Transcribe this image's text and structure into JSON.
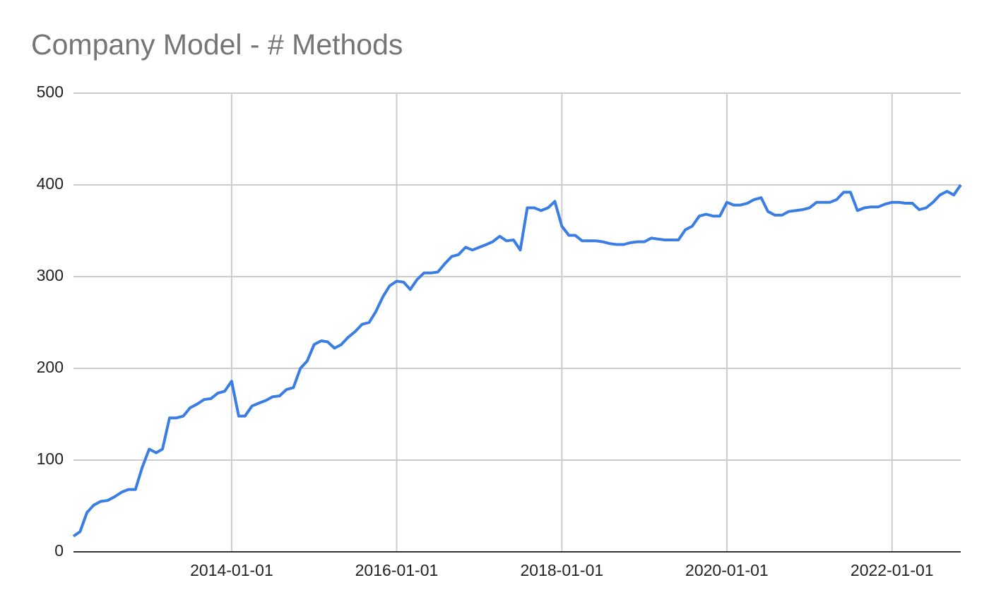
{
  "chart_data": {
    "type": "line",
    "title": "Company Model - # Methods",
    "x": [
      "2012-02-01",
      "2012-03-01",
      "2012-04-01",
      "2012-05-01",
      "2012-06-01",
      "2012-07-01",
      "2012-08-01",
      "2012-09-01",
      "2012-10-01",
      "2012-11-01",
      "2012-12-01",
      "2013-01-01",
      "2013-02-01",
      "2013-03-01",
      "2013-04-01",
      "2013-05-01",
      "2013-06-01",
      "2013-07-01",
      "2013-08-01",
      "2013-09-01",
      "2013-10-01",
      "2013-11-01",
      "2013-12-01",
      "2014-01-01",
      "2014-02-01",
      "2014-03-01",
      "2014-04-01",
      "2014-05-01",
      "2014-06-01",
      "2014-07-01",
      "2014-08-01",
      "2014-09-01",
      "2014-10-01",
      "2014-11-01",
      "2014-12-01",
      "2015-01-01",
      "2015-02-01",
      "2015-03-01",
      "2015-04-01",
      "2015-05-01",
      "2015-06-01",
      "2015-07-01",
      "2015-08-01",
      "2015-09-01",
      "2015-10-01",
      "2015-11-01",
      "2015-12-01",
      "2016-01-01",
      "2016-02-01",
      "2016-03-01",
      "2016-04-01",
      "2016-05-01",
      "2016-06-01",
      "2016-07-01",
      "2016-08-01",
      "2016-09-01",
      "2016-10-01",
      "2016-11-01",
      "2016-12-01",
      "2017-01-01",
      "2017-02-01",
      "2017-03-01",
      "2017-04-01",
      "2017-05-01",
      "2017-06-01",
      "2017-07-01",
      "2017-08-01",
      "2017-09-01",
      "2017-10-01",
      "2017-11-01",
      "2017-12-01",
      "2018-01-01",
      "2018-02-01",
      "2018-03-01",
      "2018-04-01",
      "2018-05-01",
      "2018-06-01",
      "2018-07-01",
      "2018-08-01",
      "2018-09-01",
      "2018-10-01",
      "2018-11-01",
      "2018-12-01",
      "2019-01-01",
      "2019-02-01",
      "2019-03-01",
      "2019-04-01",
      "2019-05-01",
      "2019-06-01",
      "2019-07-01",
      "2019-08-01",
      "2019-09-01",
      "2019-10-01",
      "2019-11-01",
      "2019-12-01",
      "2020-01-01",
      "2020-02-01",
      "2020-03-01",
      "2020-04-01",
      "2020-05-01",
      "2020-06-01",
      "2020-07-01",
      "2020-08-01",
      "2020-09-01",
      "2020-10-01",
      "2020-11-01",
      "2020-12-01",
      "2021-01-01",
      "2021-02-01",
      "2021-03-01",
      "2021-04-01",
      "2021-05-01",
      "2021-06-01",
      "2021-07-01",
      "2021-08-01",
      "2021-09-01",
      "2021-10-01",
      "2021-11-01",
      "2021-12-01",
      "2022-01-01",
      "2022-02-01",
      "2022-03-01",
      "2022-04-01",
      "2022-05-01",
      "2022-06-01",
      "2022-07-01",
      "2022-08-01",
      "2022-09-01",
      "2022-10-01",
      "2022-11-01"
    ],
    "series": [
      {
        "name": "# Methods",
        "color": "#3b7ee3",
        "values": [
          17,
          22,
          43,
          51,
          55,
          56,
          60,
          65,
          68,
          68,
          92,
          112,
          108,
          112,
          146,
          146,
          148,
          157,
          161,
          166,
          167,
          173,
          175,
          186,
          148,
          148,
          159,
          162,
          165,
          169,
          170,
          177,
          179,
          200,
          208,
          226,
          230,
          229,
          222,
          226,
          234,
          240,
          248,
          250,
          262,
          278,
          290,
          295,
          294,
          286,
          297,
          304,
          304,
          305,
          314,
          322,
          324,
          332,
          329,
          332,
          335,
          338,
          344,
          339,
          340,
          329,
          375,
          375,
          372,
          375,
          382,
          355,
          345,
          345,
          339,
          339,
          339,
          338,
          336,
          335,
          335,
          337,
          338,
          338,
          342,
          341,
          340,
          340,
          340,
          351,
          355,
          366,
          368,
          366,
          366,
          381,
          378,
          378,
          380,
          384,
          386,
          371,
          367,
          367,
          371,
          372,
          373,
          375,
          381,
          381,
          381,
          384,
          392,
          392,
          372,
          375,
          376,
          376,
          379,
          381,
          381,
          380,
          380,
          373,
          375,
          381,
          389,
          393,
          389,
          400
        ]
      }
    ],
    "xlim": [
      "2012-02-01",
      "2022-11-01"
    ],
    "xticks": [
      "2014-01-01",
      "2016-01-01",
      "2018-01-01",
      "2020-01-01",
      "2022-01-01"
    ],
    "ylim": [
      0,
      500
    ],
    "yticks": [
      0,
      100,
      200,
      300,
      400,
      500
    ],
    "grid": true
  }
}
